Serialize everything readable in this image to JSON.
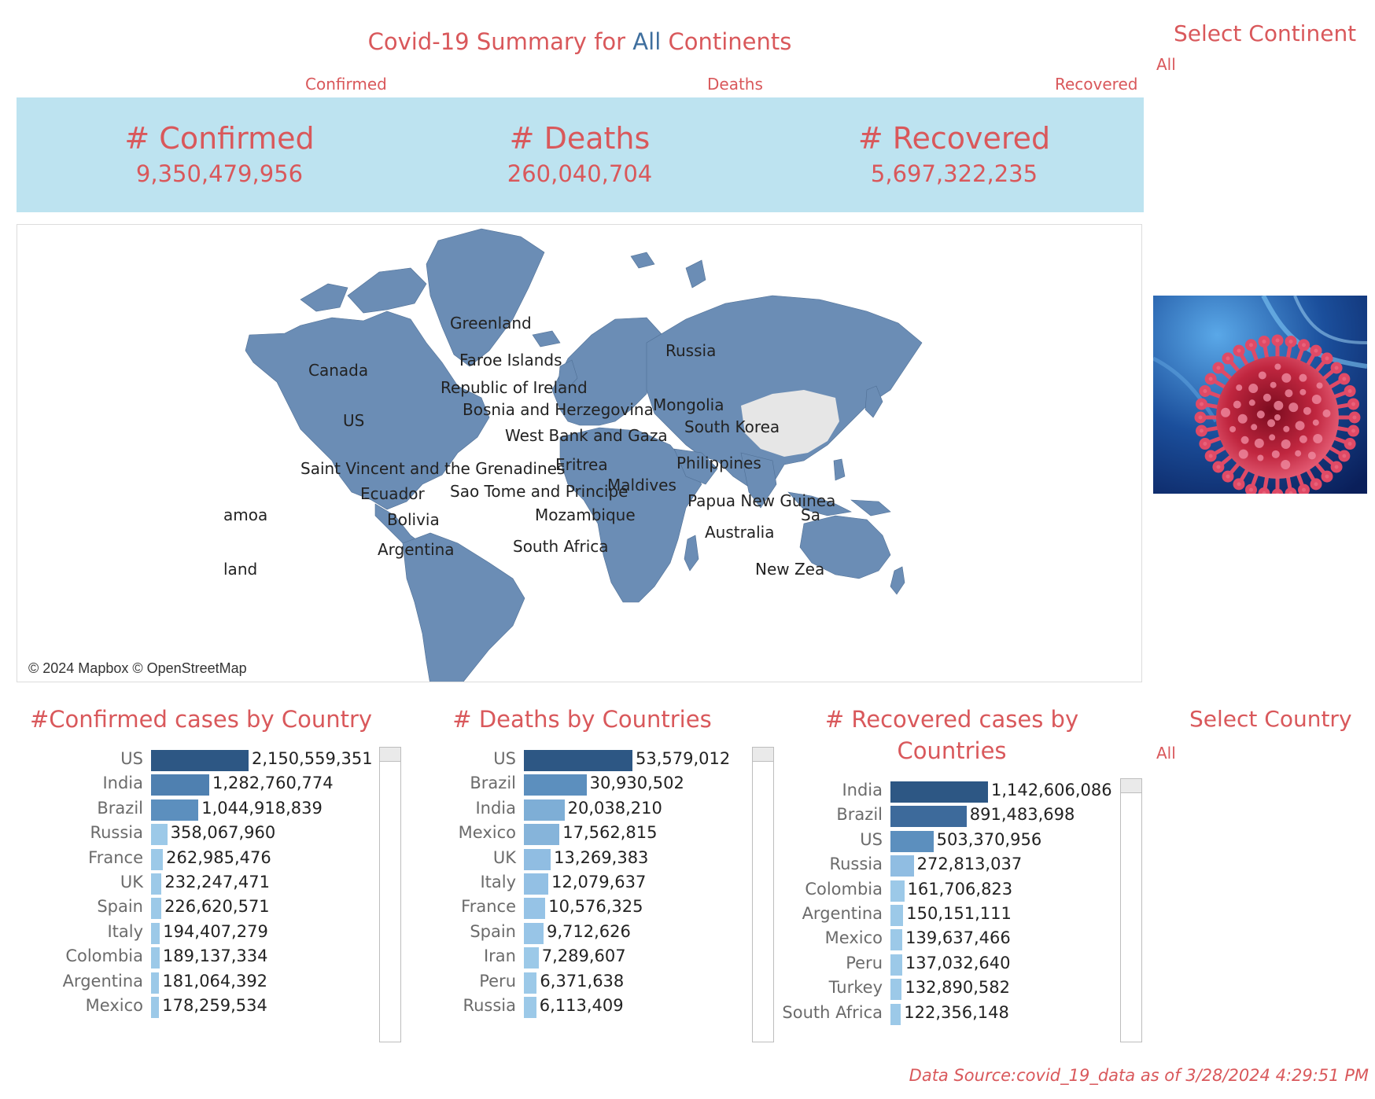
{
  "header": {
    "title_prefix": "Covid-19 Summary for ",
    "title_highlight": "All",
    "title_suffix": " Continents"
  },
  "kpi_labels": {
    "confirmed": "Confirmed",
    "deaths": "Deaths",
    "recovered": "Recovered"
  },
  "kpis": {
    "confirmed": {
      "head": "# Confirmed",
      "value": "9,350,479,956"
    },
    "deaths": {
      "head": "# Deaths",
      "value": "260,040,704"
    },
    "recovered": {
      "head": "# Recovered",
      "value": "5,697,322,235"
    }
  },
  "map": {
    "credit": "© 2024 Mapbox © OpenStreetMap",
    "land_color": "#6b8db5",
    "highlight_color": "#e6e6e6",
    "labels": [
      "Greenland",
      "Faroe Islands",
      "Canada",
      "Russia",
      "Republic of Ireland",
      "Bosnia and Herzegovina",
      "Mongolia",
      "US",
      "South Korea",
      "West Bank and Gaza",
      "Philippines",
      "Saint Vincent and the Grenadines",
      "Eritrea",
      "Maldives",
      "Ecuador",
      "Sao Tome and Principe",
      "Papua New Guinea",
      "amoa",
      "Sa",
      "Bolivia",
      "Mozambique",
      "Australia",
      "Argentina",
      "South Africa",
      "land",
      "New Zea"
    ]
  },
  "side": {
    "continent_heading": "Select Continent",
    "continent_value": "All",
    "country_heading": "Select Country",
    "country_value": "All",
    "image_icon": "coronavirus-image"
  },
  "charts": {
    "confirmed": {
      "title": "#Confirmed cases by Country",
      "labels": [
        "2,150,559,351",
        "1,282,760,774",
        "1,044,918,839",
        "358,067,960",
        "262,985,476",
        "232,247,471",
        "226,620,571",
        "194,407,279",
        "189,137,334",
        "181,064,392",
        "178,259,534"
      ]
    },
    "deaths": {
      "title": "# Deaths by Countries",
      "labels": [
        "53,579,012",
        "30,930,502",
        "20,038,210",
        "17,562,815",
        "13,269,383",
        "12,079,637",
        "10,576,325",
        "9,712,626",
        "7,289,607",
        "6,371,638",
        "6,113,409"
      ]
    },
    "recovered": {
      "title_line1": "# Recovered cases by",
      "title_line2": "Countries",
      "labels": [
        "1,142,606,086",
        "891,483,698",
        "503,370,956",
        "272,813,037",
        "161,706,823",
        "150,151,111",
        "139,637,466",
        "137,032,640",
        "132,890,582",
        "122,356,148"
      ]
    }
  },
  "chart_data": [
    {
      "type": "bar",
      "title": "#Confirmed cases by Country",
      "categories": [
        "US",
        "India",
        "Brazil",
        "Russia",
        "France",
        "UK",
        "Spain",
        "Italy",
        "Colombia",
        "Argentina",
        "Mexico"
      ],
      "values": [
        2150559351,
        1282760774,
        1044918839,
        358067960,
        262985476,
        232247471,
        226620571,
        194407279,
        189137334,
        181064392,
        178259534
      ],
      "orientation": "horizontal",
      "colors": [
        "#2d5784",
        "#4f80b0",
        "#5c8fbe",
        "#9cc9e8",
        "#9cc9e8",
        "#9cc9e8",
        "#9cc9e8",
        "#9cc9e8",
        "#9cc9e8",
        "#9cc9e8",
        "#9cc9e8"
      ]
    },
    {
      "type": "bar",
      "title": "# Deaths by Countries",
      "categories": [
        "US",
        "Brazil",
        "India",
        "Mexico",
        "UK",
        "Italy",
        "France",
        "Spain",
        "Iran",
        "Peru",
        "Russia"
      ],
      "values": [
        53579012,
        30930502,
        20038210,
        17562815,
        13269383,
        12079637,
        10576325,
        9712626,
        7289607,
        6371638,
        6113409
      ],
      "orientation": "horizontal",
      "colors": [
        "#2d5784",
        "#5c8fbe",
        "#7eaed6",
        "#86b4da",
        "#90bde2",
        "#93c0e4",
        "#96c3e6",
        "#98c5e7",
        "#9cc9e8",
        "#9cc9e8",
        "#9cc9e8"
      ]
    },
    {
      "type": "bar",
      "title": "# Recovered cases by Countries",
      "categories": [
        "India",
        "Brazil",
        "US",
        "Russia",
        "Colombia",
        "Argentina",
        "Mexico",
        "Peru",
        "Turkey",
        "South Africa"
      ],
      "values": [
        1142606086,
        891483698,
        503370956,
        272813037,
        161706823,
        150151111,
        139637466,
        137032640,
        132890582,
        122356148
      ],
      "orientation": "horizontal",
      "colors": [
        "#2d5784",
        "#3d6a9b",
        "#5c8fbe",
        "#90bde2",
        "#9cc9e8",
        "#9cc9e8",
        "#9cc9e8",
        "#9cc9e8",
        "#9cc9e8",
        "#9cc9e8"
      ]
    }
  ],
  "footer": {
    "source": "Data Source:covid_19_data as of 3/28/2024 4:29:51 PM"
  }
}
